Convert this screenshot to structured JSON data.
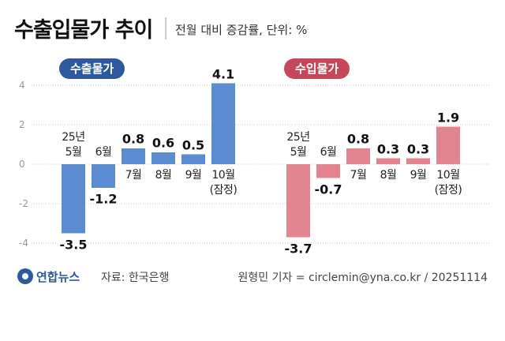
{
  "title": "수출입물가 추이",
  "subtitle": "전월 대비 증감률, 단위: %",
  "logo": "연합뉴스",
  "source": "자료: 한국은행",
  "credit": "원형민 기자 = circlemin@yna.co.kr / 20251114",
  "chart_data": [
    {
      "type": "bar",
      "title": "수출물가",
      "badge_color": "#2c5a9c",
      "color": "#5b8bd0",
      "categories": [
        "25년\n5월",
        "6월",
        "7월",
        "8월",
        "9월",
        "10월\n(잠정)"
      ],
      "values": [
        -3.5,
        -1.2,
        0.8,
        0.6,
        0.5,
        4.1
      ],
      "ylim": [
        -4.5,
        5
      ],
      "yticks": [
        4,
        2,
        0,
        -2,
        -4
      ],
      "grid": true
    },
    {
      "type": "bar",
      "title": "수입물가",
      "badge_color": "#c5485a",
      "color": "#e28590",
      "categories": [
        "25년\n5월",
        "6월",
        "7월",
        "8월",
        "9월",
        "10월\n(잠정)"
      ],
      "values": [
        -3.7,
        -0.7,
        0.8,
        0.3,
        0.3,
        1.9
      ],
      "ylim": [
        -4.5,
        5
      ]
    }
  ]
}
